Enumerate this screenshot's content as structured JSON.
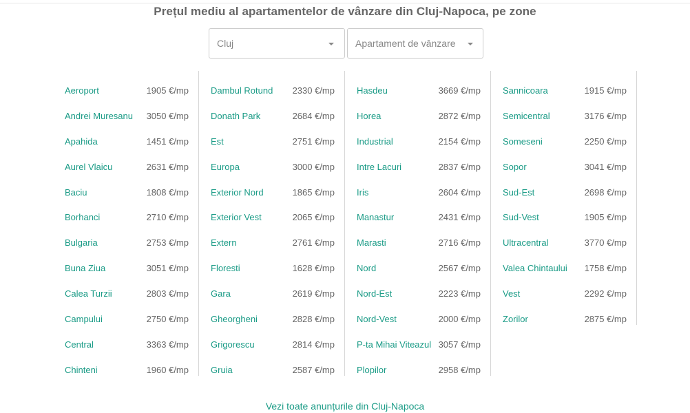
{
  "title": "Prețul mediu al apartamentelor de vânzare din Cluj-Napoca, pe zone",
  "filters": {
    "city": {
      "value": "Cluj",
      "icon": "caret-down-icon"
    },
    "type": {
      "value": "Apartament de vânzare",
      "icon": "caret-down-icon"
    }
  },
  "columns": [
    [
      {
        "zone": "Aeroport",
        "price": "1905 €/mp"
      },
      {
        "zone": "Andrei Muresanu",
        "price": "3050 €/mp"
      },
      {
        "zone": "Apahida",
        "price": "1451 €/mp"
      },
      {
        "zone": "Aurel Vlaicu",
        "price": "2631 €/mp"
      },
      {
        "zone": "Baciu",
        "price": "1808 €/mp"
      },
      {
        "zone": "Borhanci",
        "price": "2710 €/mp"
      },
      {
        "zone": "Bulgaria",
        "price": "2753 €/mp"
      },
      {
        "zone": "Buna Ziua",
        "price": "3051 €/mp"
      },
      {
        "zone": "Calea Turzii",
        "price": "2803 €/mp"
      },
      {
        "zone": "Campului",
        "price": "2750 €/mp"
      },
      {
        "zone": "Central",
        "price": "3363 €/mp"
      },
      {
        "zone": "Chinteni",
        "price": "1960 €/mp"
      }
    ],
    [
      {
        "zone": "Dambul Rotund",
        "price": "2330 €/mp"
      },
      {
        "zone": "Donath Park",
        "price": "2684 €/mp"
      },
      {
        "zone": "Est",
        "price": "2751 €/mp"
      },
      {
        "zone": "Europa",
        "price": "3000 €/mp"
      },
      {
        "zone": "Exterior Nord",
        "price": "1865 €/mp"
      },
      {
        "zone": "Exterior Vest",
        "price": "2065 €/mp"
      },
      {
        "zone": "Extern",
        "price": "2761 €/mp"
      },
      {
        "zone": "Floresti",
        "price": "1628 €/mp"
      },
      {
        "zone": "Gara",
        "price": "2619 €/mp"
      },
      {
        "zone": "Gheorgheni",
        "price": "2828 €/mp"
      },
      {
        "zone": "Grigorescu",
        "price": "2814 €/mp"
      },
      {
        "zone": "Gruia",
        "price": "2587 €/mp"
      }
    ],
    [
      {
        "zone": "Hasdeu",
        "price": "3669 €/mp"
      },
      {
        "zone": "Horea",
        "price": "2872 €/mp"
      },
      {
        "zone": "Industrial",
        "price": "2154 €/mp"
      },
      {
        "zone": "Intre Lacuri",
        "price": "2837 €/mp"
      },
      {
        "zone": "Iris",
        "price": "2604 €/mp"
      },
      {
        "zone": "Manastur",
        "price": "2431 €/mp"
      },
      {
        "zone": "Marasti",
        "price": "2716 €/mp"
      },
      {
        "zone": "Nord",
        "price": "2567 €/mp"
      },
      {
        "zone": "Nord-Est",
        "price": "2223 €/mp"
      },
      {
        "zone": "Nord-Vest",
        "price": "2000 €/mp"
      },
      {
        "zone": "P-ta Mihai Viteazul",
        "price": "3057 €/mp"
      },
      {
        "zone": "Plopilor",
        "price": "2958 €/mp"
      }
    ],
    [
      {
        "zone": "Sannicoara",
        "price": "1915 €/mp"
      },
      {
        "zone": "Semicentral",
        "price": "3176 €/mp"
      },
      {
        "zone": "Someseni",
        "price": "2250 €/mp"
      },
      {
        "zone": "Sopor",
        "price": "3041 €/mp"
      },
      {
        "zone": "Sud-Est",
        "price": "2698 €/mp"
      },
      {
        "zone": "Sud-Vest",
        "price": "1905 €/mp"
      },
      {
        "zone": "Ultracentral",
        "price": "3770 €/mp"
      },
      {
        "zone": "Valea Chintaului",
        "price": "1758 €/mp"
      },
      {
        "zone": "Vest",
        "price": "2292 €/mp"
      },
      {
        "zone": "Zorilor",
        "price": "2875 €/mp"
      }
    ]
  ],
  "footer": {
    "link_label": "Vezi toate anunțurile din Cluj-Napoca"
  },
  "colors": {
    "link": "#1a9b86",
    "text": "#666666",
    "divider": "#d6d6d6"
  }
}
